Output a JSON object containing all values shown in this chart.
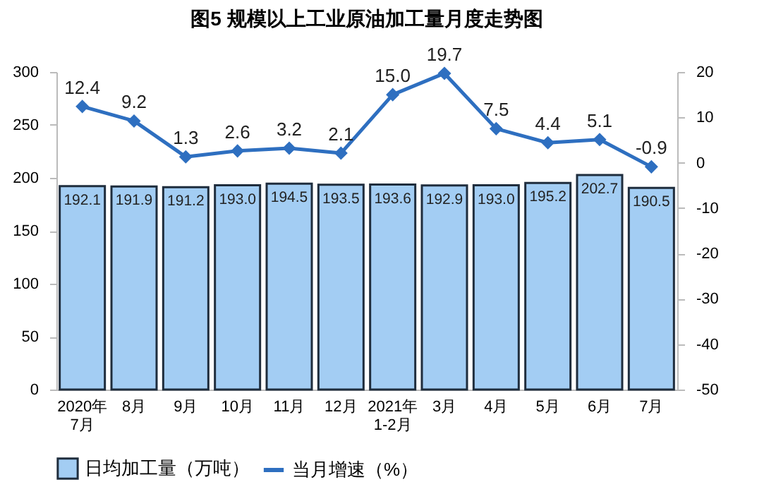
{
  "chart_data": {
    "type": "bar",
    "title": "图5  规模以上工业原油加工量月度走势图",
    "categories": [
      "2020年\n7月",
      "8月",
      "9月",
      "10月",
      "11月",
      "12月",
      "2021年\n1-2月",
      "3月",
      "4月",
      "5月",
      "6月",
      "7月"
    ],
    "series": [
      {
        "name": "日均加工量（万吨）",
        "color": "#a3cdf3",
        "values": [
          192.1,
          191.9,
          191.2,
          193.0,
          194.5,
          193.5,
          193.6,
          192.9,
          193.0,
          195.2,
          202.7,
          190.5
        ],
        "value_labels": [
          "192.1",
          "191.9",
          "191.2",
          "193.0",
          "194.5",
          "193.5",
          "193.6",
          "192.9",
          "193.0",
          "195.2",
          "202.7",
          "190.5"
        ]
      },
      {
        "name": "当月增速（%）",
        "type": "line",
        "axis": "y2",
        "color": "#2e6fc0",
        "marker": "diamond",
        "values": [
          12.4,
          9.2,
          1.3,
          2.6,
          3.2,
          2.1,
          15.0,
          19.7,
          7.5,
          4.4,
          5.1,
          -0.9
        ],
        "value_labels": [
          "12.4",
          "9.2",
          "1.3",
          "2.6",
          "3.2",
          "2.1",
          "15.0",
          "19.7",
          "7.5",
          "4.4",
          "5.1",
          "-0.9"
        ]
      }
    ],
    "ylim": [
      0,
      300
    ],
    "yticks": [
      0,
      50,
      100,
      150,
      200,
      250,
      300
    ],
    "y2lim": [
      -50,
      20
    ],
    "y2ticks": [
      -50,
      -40,
      -30,
      -20,
      -10,
      0,
      10,
      20
    ],
    "legend": "bottom"
  }
}
